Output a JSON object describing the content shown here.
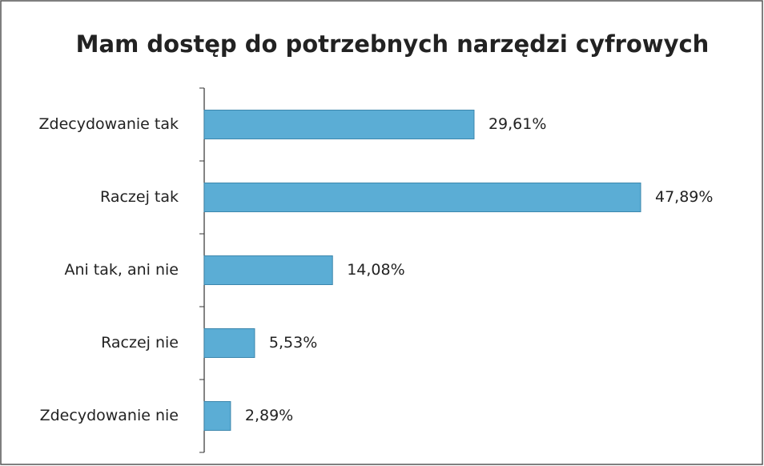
{
  "chart_data": {
    "type": "bar",
    "orientation": "horizontal",
    "title": "Mam dostęp do potrzebnych narzędzi cyfrowych",
    "categories": [
      "Zdecydowanie tak",
      "Raczej tak",
      "Ani tak, ani nie",
      "Raczej nie",
      "Zdecydowanie nie"
    ],
    "values": [
      29.61,
      47.89,
      14.08,
      5.53,
      2.89
    ],
    "value_labels": [
      "29,61%",
      "47,89%",
      "14,08%",
      "5,53%",
      "2,89%"
    ],
    "color": "#5badd5"
  }
}
